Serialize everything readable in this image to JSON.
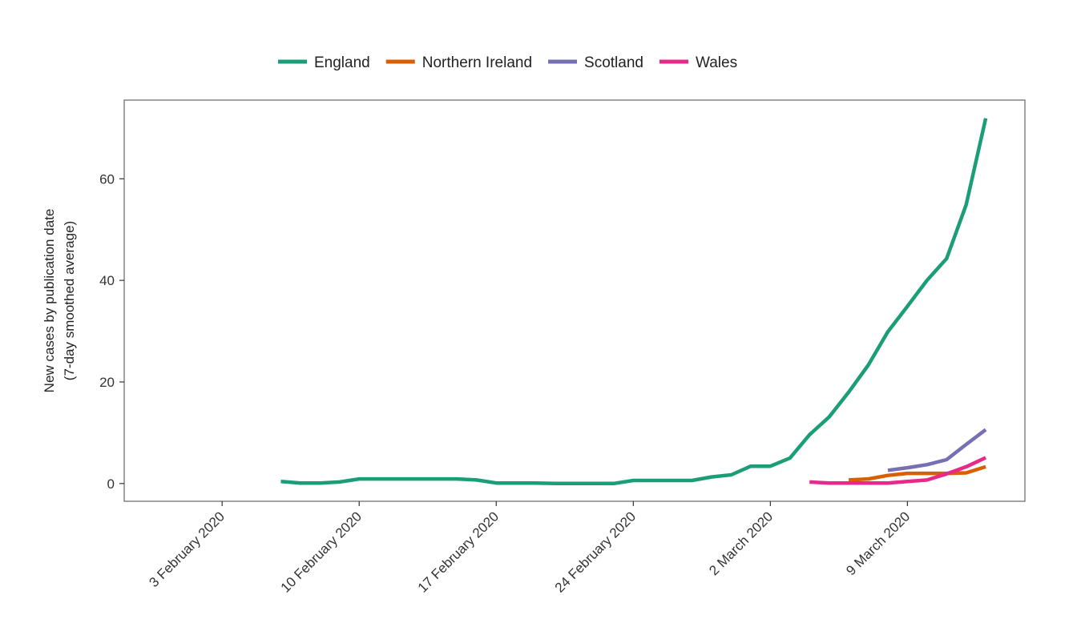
{
  "chart_data": {
    "type": "line",
    "title": "",
    "xlabel": "",
    "ylabel_lines": [
      "New cases by publication date",
      "(7-day smoothed average)"
    ],
    "x_ticks": [
      "3 February 2020",
      "10 February 2020",
      "17 February 2020",
      "24 February 2020",
      "2 March 2020",
      "9 March 2020"
    ],
    "xlim": [
      "2020-01-29",
      "2020-03-15"
    ],
    "y_ticks": [
      0,
      20,
      40,
      60
    ],
    "ylim": [
      -3.5,
      75.5
    ],
    "grid": false,
    "legend_position": "top",
    "series": [
      {
        "name": "England",
        "color": "#1b9e77",
        "points": [
          [
            "2020-02-06",
            0.4
          ],
          [
            "2020-02-07",
            0.1
          ],
          [
            "2020-02-08",
            0.1
          ],
          [
            "2020-02-09",
            0.3
          ],
          [
            "2020-02-10",
            0.9
          ],
          [
            "2020-02-11",
            0.9
          ],
          [
            "2020-02-12",
            0.9
          ],
          [
            "2020-02-13",
            0.9
          ],
          [
            "2020-02-14",
            0.9
          ],
          [
            "2020-02-15",
            0.9
          ],
          [
            "2020-02-16",
            0.7
          ],
          [
            "2020-02-17",
            0.1
          ],
          [
            "2020-02-18",
            0.1
          ],
          [
            "2020-02-19",
            0.1
          ],
          [
            "2020-02-20",
            0.0
          ],
          [
            "2020-02-21",
            0.0
          ],
          [
            "2020-02-22",
            0.0
          ],
          [
            "2020-02-23",
            0.0
          ],
          [
            "2020-02-24",
            0.6
          ],
          [
            "2020-02-25",
            0.6
          ],
          [
            "2020-02-26",
            0.6
          ],
          [
            "2020-02-27",
            0.6
          ],
          [
            "2020-02-28",
            1.3
          ],
          [
            "2020-02-29",
            1.7
          ],
          [
            "2020-03-01",
            3.4
          ],
          [
            "2020-03-02",
            3.4
          ],
          [
            "2020-03-03",
            5.0
          ],
          [
            "2020-03-04",
            9.6
          ],
          [
            "2020-03-05",
            13.1
          ],
          [
            "2020-03-06",
            18.0
          ],
          [
            "2020-03-07",
            23.3
          ],
          [
            "2020-03-08",
            29.9
          ],
          [
            "2020-03-09",
            34.9
          ],
          [
            "2020-03-10",
            40.0
          ],
          [
            "2020-03-11",
            44.3
          ],
          [
            "2020-03-12",
            54.9
          ],
          [
            "2020-03-13",
            71.9
          ]
        ]
      },
      {
        "name": "Northern Ireland",
        "color": "#d95f02",
        "points": [
          [
            "2020-03-06",
            0.7
          ],
          [
            "2020-03-07",
            0.9
          ],
          [
            "2020-03-08",
            1.6
          ],
          [
            "2020-03-09",
            2.0
          ],
          [
            "2020-03-10",
            2.0
          ],
          [
            "2020-03-11",
            2.0
          ],
          [
            "2020-03-12",
            2.1
          ],
          [
            "2020-03-13",
            3.3
          ]
        ]
      },
      {
        "name": "Scotland",
        "color": "#7570b3",
        "points": [
          [
            "2020-03-08",
            2.6
          ],
          [
            "2020-03-09",
            3.1
          ],
          [
            "2020-03-10",
            3.7
          ],
          [
            "2020-03-11",
            4.7
          ],
          [
            "2020-03-12",
            7.7
          ],
          [
            "2020-03-13",
            10.6
          ]
        ]
      },
      {
        "name": "Wales",
        "color": "#e7298a",
        "points": [
          [
            "2020-03-04",
            0.3
          ],
          [
            "2020-03-05",
            0.1
          ],
          [
            "2020-03-06",
            0.1
          ],
          [
            "2020-03-07",
            0.1
          ],
          [
            "2020-03-08",
            0.1
          ],
          [
            "2020-03-09",
            0.4
          ],
          [
            "2020-03-10",
            0.7
          ],
          [
            "2020-03-11",
            1.9
          ],
          [
            "2020-03-12",
            3.3
          ],
          [
            "2020-03-13",
            5.1
          ]
        ]
      }
    ]
  }
}
